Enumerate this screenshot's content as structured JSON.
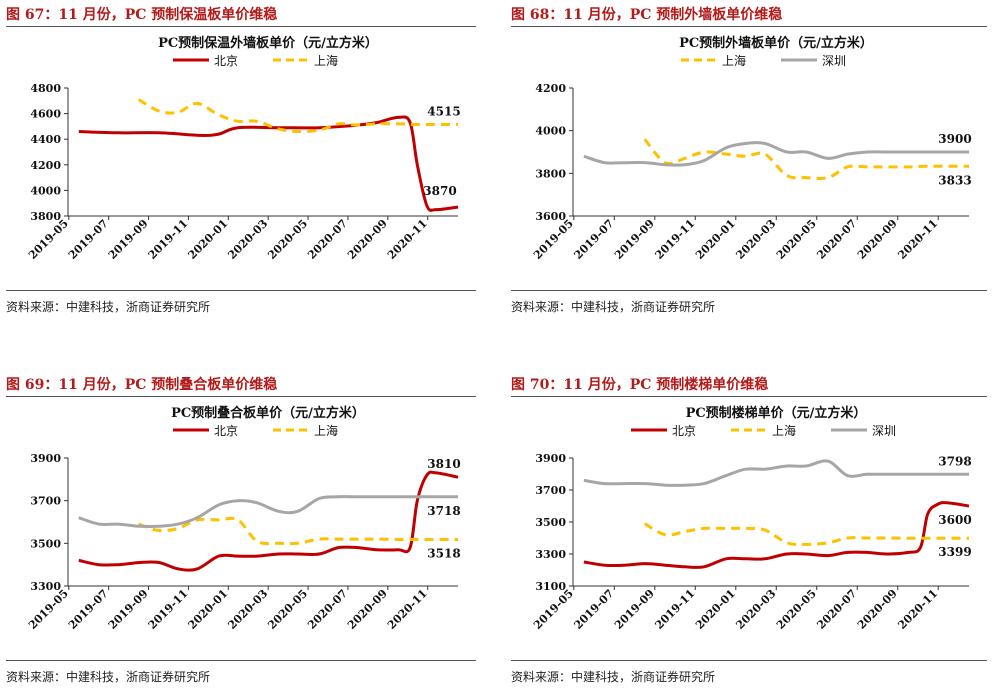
{
  "source_text": "资料来源：中建科技，浙商证券研究所",
  "panels": [
    {
      "figure_title": "图 67：11 月份，PC 预制保温板单价维稳",
      "chart_data": {
        "type": "line",
        "title": "PC预制保温外墙板单价（元/立方米）",
        "xlabel": "",
        "ylabel": "",
        "categories": [
          "2019-05",
          "2019-07",
          "2019-09",
          "2019-11",
          "2020-01",
          "2020-03",
          "2020-05",
          "2020-07",
          "2020-09",
          "2020-11"
        ],
        "x_range": [
          2019.33,
          2020.96
        ],
        "ylim": [
          3800,
          4800
        ],
        "yticks": [
          3800,
          4000,
          4200,
          4400,
          4600,
          4800
        ],
        "series": [
          {
            "name": "北京",
            "color": "#c00000",
            "dash": "solid",
            "x": [
              2019.375,
              2019.54,
              2019.71,
              2019.88,
              2019.96,
              2020.04,
              2020.21,
              2020.38,
              2020.54,
              2020.62,
              2020.71,
              2020.76,
              2020.79,
              2020.83,
              2020.87,
              2020.96
            ],
            "y": [
              4460,
              4450,
              4450,
              4430,
              4440,
              4490,
              4490,
              4490,
              4510,
              4530,
              4570,
              4530,
              4200,
              3880,
              3850,
              3870
            ]
          },
          {
            "name": "上海",
            "color": "#ffc000",
            "dash": "dash",
            "x": [
              2019.625,
              2019.71,
              2019.79,
              2019.87,
              2019.96,
              2020.04,
              2020.12,
              2020.21,
              2020.29,
              2020.38,
              2020.46,
              2020.54,
              2020.62,
              2020.71,
              2020.79,
              2020.96
            ],
            "y": [
              4710,
              4620,
              4610,
              4680,
              4590,
              4540,
              4540,
              4480,
              4460,
              4470,
              4520,
              4510,
              4520,
              4520,
              4515,
              4515
            ]
          }
        ],
        "annotations": [
          {
            "text": "4515",
            "x": 2020.96,
            "y": 4515,
            "pos": "above"
          },
          {
            "text": "3870",
            "x": 2020.96,
            "y": 3870,
            "pos": "above-left"
          }
        ],
        "legend": "top"
      }
    },
    {
      "figure_title": "图 68：11 月份，PC 预制外墙板单价维稳",
      "chart_data": {
        "type": "line",
        "title": "PC预制外墙板单价（元/立方米）",
        "xlabel": "",
        "ylabel": "",
        "categories": [
          "2019-05",
          "2019-07",
          "2019-09",
          "2019-11",
          "2020-01",
          "2020-03",
          "2020-05",
          "2020-07",
          "2020-09",
          "2020-11"
        ],
        "x_range": [
          2019.33,
          2020.96
        ],
        "ylim": [
          3600,
          4200
        ],
        "yticks": [
          3600,
          3800,
          4000,
          4200
        ],
        "series": [
          {
            "name": "上海",
            "color": "#ffc000",
            "dash": "dash",
            "x": [
              2019.625,
              2019.71,
              2019.79,
              2019.87,
              2019.96,
              2020.04,
              2020.12,
              2020.21,
              2020.29,
              2020.38,
              2020.46,
              2020.54,
              2020.62,
              2020.71,
              2020.79,
              2020.96
            ],
            "y": [
              3960,
              3850,
              3870,
              3900,
              3890,
              3880,
              3890,
              3790,
              3780,
              3780,
              3830,
              3830,
              3830,
              3830,
              3833,
              3833
            ]
          },
          {
            "name": "深圳",
            "color": "#a6a6a6",
            "dash": "solid",
            "x": [
              2019.375,
              2019.46,
              2019.54,
              2019.63,
              2019.71,
              2019.79,
              2019.87,
              2019.96,
              2020.04,
              2020.12,
              2020.21,
              2020.29,
              2020.38,
              2020.46,
              2020.54,
              2020.62,
              2020.71,
              2020.79,
              2020.96
            ],
            "y": [
              3880,
              3850,
              3850,
              3850,
              3840,
              3840,
              3860,
              3920,
              3940,
              3940,
              3900,
              3900,
              3870,
              3890,
              3900,
              3900,
              3900,
              3900,
              3900
            ]
          }
        ],
        "annotations": [
          {
            "text": "3900",
            "x": 2020.96,
            "y": 3900,
            "pos": "above"
          },
          {
            "text": "3833",
            "x": 2020.96,
            "y": 3833,
            "pos": "below"
          }
        ],
        "legend": "top"
      }
    },
    {
      "figure_title": "图 69：11 月份，PC 预制叠合板单价维稳",
      "chart_data": {
        "type": "line",
        "title": "PC预制叠合板单价（元/立方米）",
        "xlabel": "",
        "ylabel": "",
        "categories": [
          "2019-05",
          "2019-07",
          "2019-09",
          "2019-11",
          "2020-01",
          "2020-03",
          "2020-05",
          "2020-07",
          "2020-09",
          "2020-11"
        ],
        "x_range": [
          2019.33,
          2020.96
        ],
        "ylim": [
          3300,
          3900
        ],
        "yticks": [
          3300,
          3500,
          3700,
          3900
        ],
        "series": [
          {
            "name": "北京",
            "color": "#c00000",
            "dash": "solid",
            "x": [
              2019.375,
              2019.46,
              2019.54,
              2019.63,
              2019.71,
              2019.79,
              2019.87,
              2019.96,
              2020.04,
              2020.12,
              2020.21,
              2020.29,
              2020.38,
              2020.46,
              2020.54,
              2020.62,
              2020.71,
              2020.76,
              2020.79,
              2020.83,
              2020.87,
              2020.96
            ],
            "y": [
              3420,
              3400,
              3400,
              3410,
              3410,
              3380,
              3380,
              3440,
              3440,
              3440,
              3450,
              3450,
              3450,
              3480,
              3480,
              3470,
              3470,
              3480,
              3700,
              3820,
              3830,
              3810
            ]
          },
          {
            "name": "上海",
            "color": "#ffc000",
            "dash": "dash",
            "x": [
              2019.625,
              2019.71,
              2019.79,
              2019.87,
              2019.96,
              2020.04,
              2020.12,
              2020.21,
              2020.29,
              2020.38,
              2020.46,
              2020.54,
              2020.62,
              2020.71,
              2020.79,
              2020.96
            ],
            "y": [
              3590,
              3560,
              3570,
              3610,
              3610,
              3610,
              3510,
              3500,
              3500,
              3520,
              3520,
              3520,
              3520,
              3518,
              3518,
              3518
            ]
          },
          {
            "name": "",
            "color": "#a6a6a6",
            "dash": "solid",
            "x": [
              2019.375,
              2019.46,
              2019.54,
              2019.63,
              2019.71,
              2019.79,
              2019.87,
              2019.96,
              2020.04,
              2020.12,
              2020.21,
              2020.29,
              2020.38,
              2020.46,
              2020.54,
              2020.62,
              2020.71,
              2020.79,
              2020.96
            ],
            "y": [
              3620,
              3590,
              3590,
              3580,
              3580,
              3590,
              3620,
              3680,
              3700,
              3690,
              3650,
              3650,
              3710,
              3718,
              3718,
              3718,
              3718,
              3718,
              3718
            ]
          }
        ],
        "annotations": [
          {
            "text": "3810",
            "x": 2020.96,
            "y": 3810,
            "pos": "above"
          },
          {
            "text": "3718",
            "x": 2020.96,
            "y": 3718,
            "pos": "below"
          },
          {
            "text": "3518",
            "x": 2020.96,
            "y": 3518,
            "pos": "below"
          }
        ],
        "legend": "top"
      }
    },
    {
      "figure_title": "图 70：11 月份，PC 预制楼梯单价维稳",
      "chart_data": {
        "type": "line",
        "title": "PC预制楼梯单价（元/立方米）",
        "xlabel": "",
        "ylabel": "",
        "categories": [
          "2019-05",
          "2019-07",
          "2019-09",
          "2019-11",
          "2020-01",
          "2020-03",
          "2020-05",
          "2020-07",
          "2020-09",
          "2020-11"
        ],
        "x_range": [
          2019.33,
          2020.96
        ],
        "ylim": [
          3100,
          3900
        ],
        "yticks": [
          3100,
          3300,
          3500,
          3700,
          3900
        ],
        "series": [
          {
            "name": "北京",
            "color": "#c00000",
            "dash": "solid",
            "x": [
              2019.375,
              2019.46,
              2019.54,
              2019.63,
              2019.71,
              2019.79,
              2019.87,
              2019.96,
              2020.04,
              2020.12,
              2020.21,
              2020.29,
              2020.38,
              2020.46,
              2020.54,
              2020.62,
              2020.71,
              2020.76,
              2020.79,
              2020.83,
              2020.87,
              2020.96
            ],
            "y": [
              3250,
              3230,
              3230,
              3240,
              3230,
              3220,
              3220,
              3270,
              3270,
              3270,
              3300,
              3300,
              3290,
              3310,
              3310,
              3300,
              3310,
              3340,
              3550,
              3610,
              3620,
              3600
            ]
          },
          {
            "name": "上海",
            "color": "#ffc000",
            "dash": "dash",
            "x": [
              2019.625,
              2019.71,
              2019.79,
              2019.87,
              2019.96,
              2020.04,
              2020.12,
              2020.21,
              2020.29,
              2020.38,
              2020.46,
              2020.54,
              2020.62,
              2020.71,
              2020.79,
              2020.96
            ],
            "y": [
              3490,
              3420,
              3440,
              3460,
              3460,
              3460,
              3450,
              3370,
              3360,
              3370,
              3400,
              3400,
              3400,
              3399,
              3399,
              3399
            ]
          },
          {
            "name": "深圳",
            "color": "#a6a6a6",
            "dash": "solid",
            "x": [
              2019.375,
              2019.46,
              2019.54,
              2019.63,
              2019.71,
              2019.79,
              2019.87,
              2019.96,
              2020.04,
              2020.12,
              2020.21,
              2020.29,
              2020.38,
              2020.46,
              2020.54,
              2020.62,
              2020.71,
              2020.79,
              2020.96
            ],
            "y": [
              3760,
              3740,
              3740,
              3740,
              3730,
              3730,
              3740,
              3790,
              3830,
              3830,
              3850,
              3850,
              3880,
              3790,
              3798,
              3798,
              3798,
              3798,
              3798
            ]
          }
        ],
        "annotations": [
          {
            "text": "3798",
            "x": 2020.96,
            "y": 3798,
            "pos": "above"
          },
          {
            "text": "3600",
            "x": 2020.96,
            "y": 3600,
            "pos": "below"
          },
          {
            "text": "3399",
            "x": 2020.96,
            "y": 3399,
            "pos": "below"
          }
        ],
        "legend": "top"
      }
    }
  ]
}
